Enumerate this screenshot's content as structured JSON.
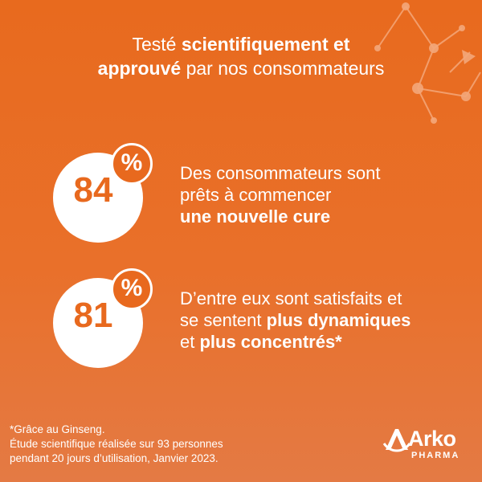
{
  "headline": {
    "l1_pre": "Testé ",
    "l1_bold": "scientifiquement et",
    "l2_bold": "approuvé",
    "l2_post": " par nos consommateurs"
  },
  "stats": [
    {
      "value": "84",
      "percent_sign": "%",
      "line1": "Des consommateurs sont",
      "line2": "prêts à commencer",
      "line3_bold": "une nouvelle cure"
    },
    {
      "value": "81",
      "percent_sign": "%",
      "line1": "D’entre eux sont satisfaits et",
      "line2_pre": "se sentent ",
      "line2_bold": "plus dynamiques",
      "line3_pre": "et ",
      "line3_bold": "plus concentrés*"
    }
  ],
  "footnote": {
    "line1": "*Grâce au Ginseng.",
    "line2": "Étude scientifique réalisée sur 93 personnes",
    "line3": "pendant 20 jours d’utilisation, Janvier 2023."
  },
  "brand": {
    "name": "Arko",
    "sub": "PHARMA",
    "icon": "arko-logo-icon"
  },
  "colors": {
    "background": "#e86a1e",
    "accent": "#e8691e",
    "text": "#ffffff"
  }
}
